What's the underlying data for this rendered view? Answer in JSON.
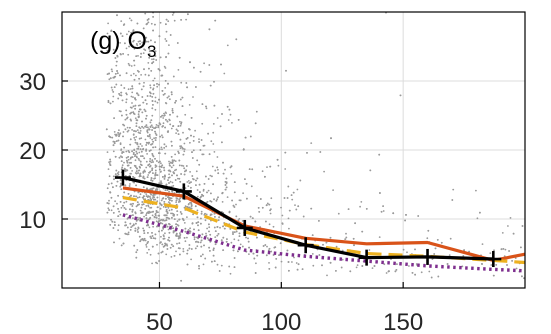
{
  "chart_data": {
    "type": "scatter",
    "panel_label": "(g) O",
    "panel_label_subscript": "3",
    "xlim": [
      10,
      200
    ],
    "ylim": [
      0,
      40
    ],
    "xticks": [
      50,
      100,
      150
    ],
    "yticks": [
      10,
      20,
      30
    ],
    "grid": true,
    "scatter_color": "#9a9a9a",
    "series": [
      {
        "style": "solid-with-plus-markers",
        "color": "#000000",
        "x": [
          35,
          60,
          85,
          110,
          135,
          160,
          187
        ],
        "y": [
          16.0,
          14.0,
          8.7,
          6.2,
          4.4,
          4.5,
          4.2
        ]
      },
      {
        "style": "solid",
        "color": "#d95319",
        "x": [
          35,
          60,
          85,
          110,
          135,
          160,
          187,
          200
        ],
        "y": [
          14.5,
          13.3,
          9.0,
          7.2,
          6.4,
          6.6,
          4.0,
          4.9
        ]
      },
      {
        "style": "dashed",
        "color": "#edb120",
        "x": [
          35,
          60,
          85,
          110,
          135,
          160,
          187,
          200
        ],
        "y": [
          13.1,
          11.6,
          8.1,
          6.3,
          5.0,
          4.6,
          4.0,
          3.7
        ]
      },
      {
        "style": "dotted",
        "color": "#7e2f8e",
        "x": [
          35,
          60,
          85,
          110,
          135,
          160,
          187,
          200
        ],
        "y": [
          10.6,
          8.2,
          5.5,
          4.6,
          3.9,
          3.2,
          2.7,
          2.5
        ]
      }
    ]
  }
}
